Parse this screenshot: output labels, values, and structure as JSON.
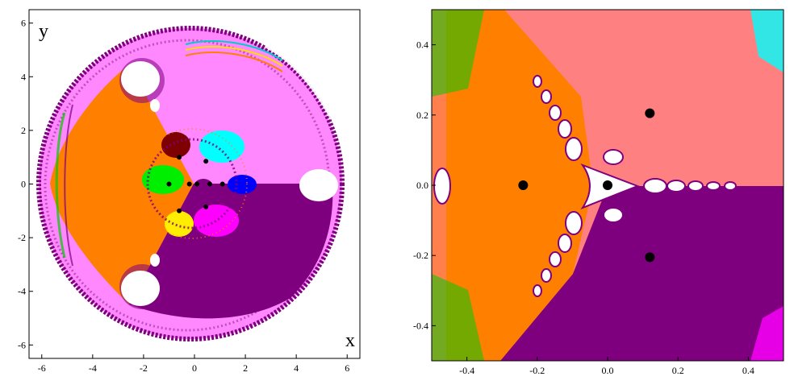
{
  "chart_data": [
    {
      "type": "heatmap",
      "title": "",
      "xlabel": "x",
      "ylabel": "y",
      "xlim": [
        -6.5,
        6.5
      ],
      "ylim": [
        -6.5,
        6.5
      ],
      "x_ticks": [
        -6,
        -4,
        -2,
        0,
        2,
        4,
        6
      ],
      "y_ticks": [
        6,
        4,
        2,
        0,
        -2,
        -4,
        -6
      ],
      "grid": false,
      "basin_colors": {
        "background": "#ff88ff",
        "orange": "#ff7f00",
        "purple": "#7f007f",
        "green": "#00ee00",
        "yellow": "#ffee00",
        "magenta": "#ff00ff",
        "cyan": "#00ffff",
        "blue": "#0000ff",
        "dark_red": "#7f0000",
        "salmon": "#ff8080",
        "white": "#ffffff",
        "root_point": "#000000"
      },
      "root_points": [
        {
          "x": -1.0,
          "y": 0.0
        },
        {
          "x": -0.6,
          "y": 1.0
        },
        {
          "x": -0.6,
          "y": -1.0
        },
        {
          "x": 0.45,
          "y": 0.85
        },
        {
          "x": 0.45,
          "y": -0.85
        },
        {
          "x": -0.2,
          "y": 0.0
        },
        {
          "x": 0.1,
          "y": 0.0
        },
        {
          "x": 0.6,
          "y": 0.0
        },
        {
          "x": 1.1,
          "y": 0.0
        }
      ]
    },
    {
      "type": "heatmap",
      "title": "",
      "xlabel": "",
      "ylabel": "",
      "xlim": [
        -0.5,
        0.5
      ],
      "ylim": [
        -0.5,
        0.5
      ],
      "x_ticks": [
        "-0.4",
        "-0.2",
        "0.0",
        "0.2",
        "0.4"
      ],
      "y_ticks": [
        "0.4",
        "0.2",
        "0.0",
        "-0.2",
        "-0.4"
      ],
      "grid": false,
      "root_points": [
        {
          "x": -0.24,
          "y": 0.0
        },
        {
          "x": 0.0,
          "y": 0.0
        },
        {
          "x": 0.12,
          "y": 0.205
        },
        {
          "x": 0.12,
          "y": -0.205
        }
      ]
    }
  ]
}
